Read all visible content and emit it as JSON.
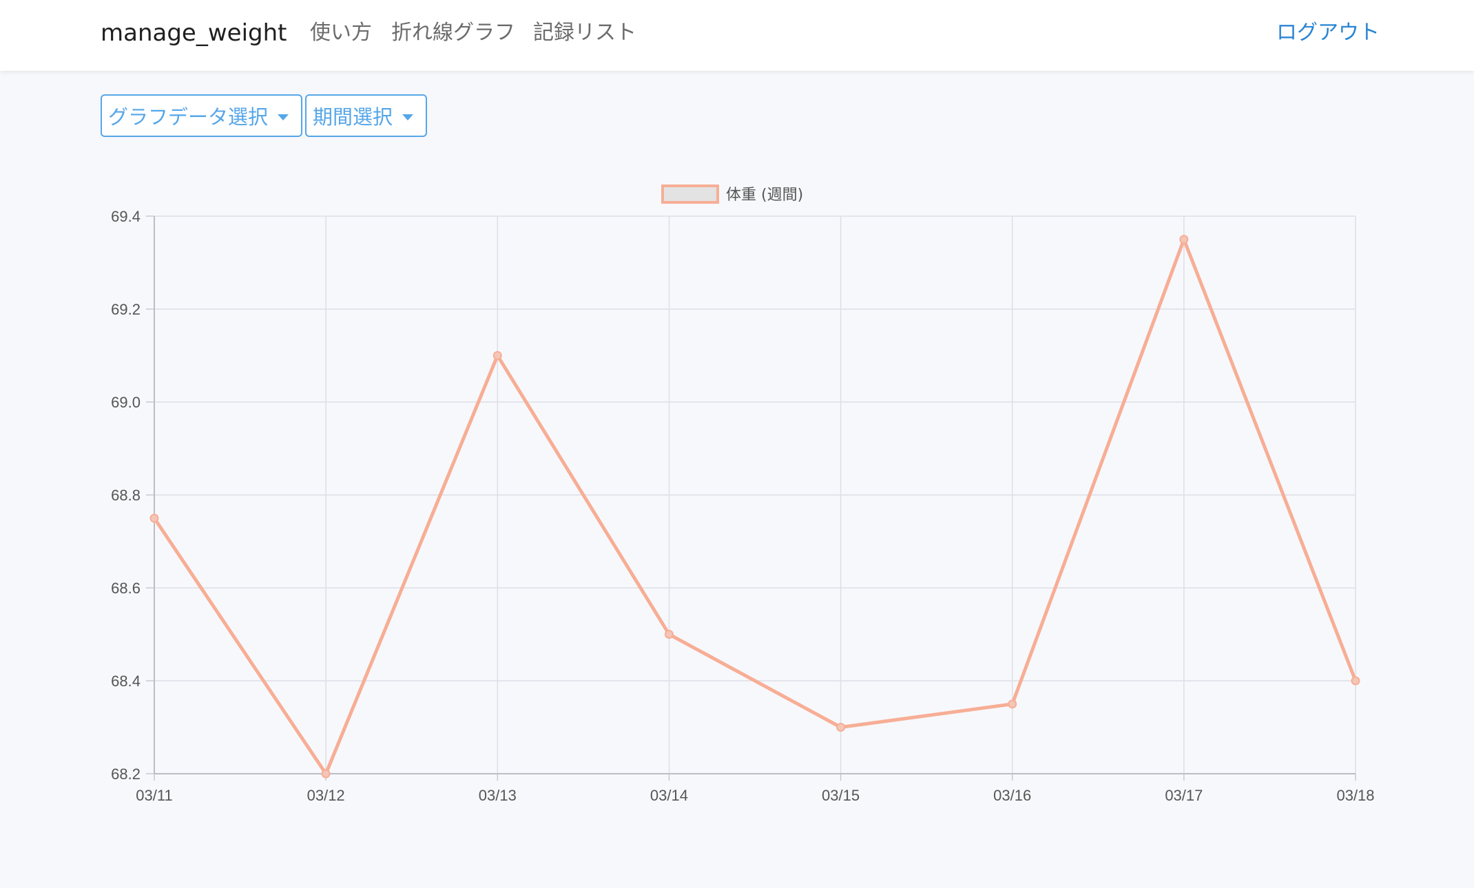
{
  "nav": {
    "brand": "manage_weight",
    "links": [
      "使い方",
      "折れ線グラフ",
      "記録リスト"
    ],
    "logout": "ログアウト"
  },
  "controls": {
    "graph_data_select": "グラフデータ選択",
    "period_select": "期間選択"
  },
  "colors": {
    "line": "#f7ae95",
    "point_fill": "#f3c6b8",
    "legend_box_fill": "#e3e3e3",
    "accent": "#55a6e8",
    "logout": "#2a85d2"
  },
  "icons": {
    "dropdown": "caret-down-icon"
  },
  "chart_data": {
    "type": "line",
    "title": "",
    "xlabel": "",
    "ylabel": "",
    "categories": [
      "03/11",
      "03/12",
      "03/13",
      "03/14",
      "03/15",
      "03/16",
      "03/17",
      "03/18"
    ],
    "series": [
      {
        "name": "体重 (週間)",
        "values": [
          68.75,
          68.2,
          69.1,
          68.5,
          68.3,
          68.35,
          69.35,
          68.4
        ]
      }
    ],
    "ylim": [
      68.2,
      69.4
    ],
    "yticks": [
      "68.2",
      "68.4",
      "68.6",
      "68.8",
      "69.0",
      "69.2",
      "69.4"
    ],
    "grid": true,
    "legend": "top-center"
  }
}
